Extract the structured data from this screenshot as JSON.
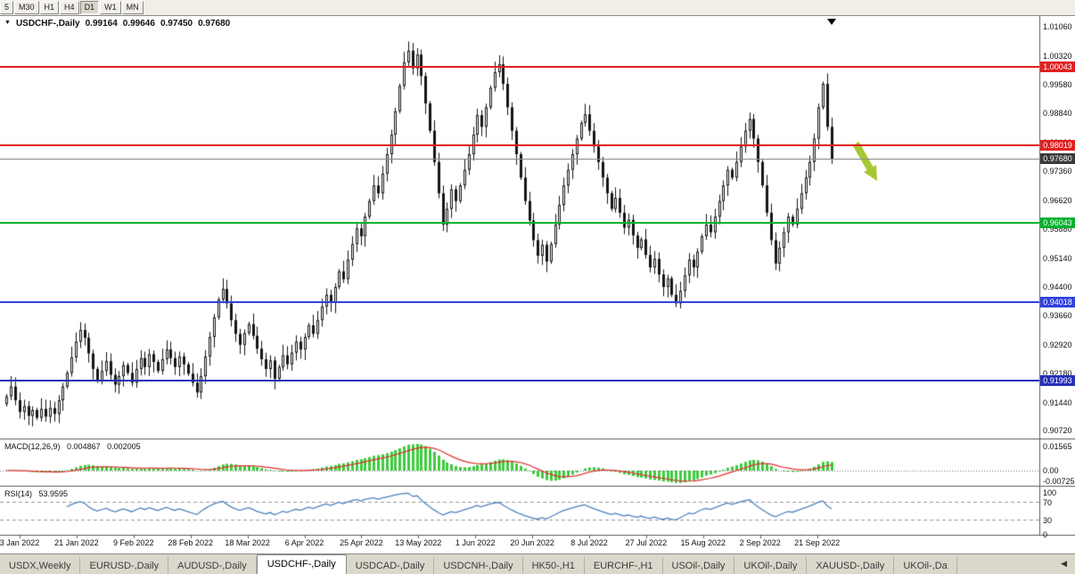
{
  "toolbar": {
    "timeframes": [
      {
        "label": "5",
        "active": false
      },
      {
        "label": "M30",
        "active": false
      },
      {
        "label": "H1",
        "active": false
      },
      {
        "label": "H4",
        "active": false
      },
      {
        "label": "D1",
        "active": true
      },
      {
        "label": "W1",
        "active": false
      },
      {
        "label": "MN",
        "active": false
      }
    ]
  },
  "chart": {
    "collapse_icon": "▼",
    "title": {
      "symbol": "USDCHF-,Daily",
      "open": "0.99164",
      "high": "0.99646",
      "low": "0.97450",
      "close": "0.97680"
    },
    "price_axis_labels": [
      "1.01060",
      "1.00320",
      "0.99580",
      "0.98840",
      "0.98100",
      "0.97360",
      "0.96620",
      "0.95880",
      "0.95140",
      "0.94400",
      "0.93660",
      "0.92920",
      "0.92180",
      "0.91440",
      "0.90720"
    ],
    "levels": [
      {
        "value": "1.00043",
        "color": "#e02020",
        "thickness": 2,
        "role": "resistance-line-upper"
      },
      {
        "value": "0.98019",
        "color": "#e02020",
        "thickness": 2,
        "role": "resistance-line-lower"
      },
      {
        "value": "0.97680",
        "color": "#8a8a8a",
        "box_color": "#3a3a3a",
        "thickness": 1,
        "role": "current-price-line"
      },
      {
        "value": "0.96043",
        "color": "#00b22d",
        "thickness": 2,
        "role": "support-line-green"
      },
      {
        "value": "0.94018",
        "color": "#3142dd",
        "thickness": 2,
        "role": "support-line-blue-upper"
      },
      {
        "value": "0.91993",
        "color": "#2330b8",
        "thickness": 2,
        "role": "support-line-blue-lower"
      }
    ],
    "date_axis_labels": [
      "3 Jan 2022",
      "21 Jan 2022",
      "9 Feb 2022",
      "28 Feb 2022",
      "18 Mar 2022",
      "6 Apr 2022",
      "25 Apr 2022",
      "13 May 2022",
      "1 Jun 2022",
      "20 Jun 2022",
      "8 Jul 2022",
      "27 Jul 2022",
      "15 Aug 2022",
      "2 Sep 2022",
      "21 Sep 2022"
    ]
  },
  "macd_panel": {
    "label": "MACD(12,26,9)",
    "main_value": "0.004867",
    "signal_value": "0.002005",
    "axis_labels": [
      "0.01565",
      "0.00",
      "-0.00725"
    ],
    "histogram_color": "#3ecb3e",
    "signal_color": "#e03030"
  },
  "rsi_panel": {
    "label": "RSI(14)",
    "value": "53.9595",
    "axis_labels": [
      "100",
      "70",
      "30",
      "0"
    ],
    "level_lines": [
      70,
      30
    ],
    "line_color": "#4f81bd"
  },
  "tabs": {
    "items": [
      {
        "label": "USDX,Weekly",
        "active": false
      },
      {
        "label": "EURUSD-,Daily",
        "active": false
      },
      {
        "label": "AUDUSD-,Daily",
        "active": false
      },
      {
        "label": "USDCHF-,Daily",
        "active": true
      },
      {
        "label": "USDCAD-,Daily",
        "active": false
      },
      {
        "label": "USDCNH-,Daily",
        "active": false
      },
      {
        "label": "HK50-,H1",
        "active": false
      },
      {
        "label": "EURCHF-,H1",
        "active": false
      },
      {
        "label": "USOil-,Daily",
        "active": false
      },
      {
        "label": "UKOil-,Daily",
        "active": false
      },
      {
        "label": "XAUUSD-,Daily",
        "active": false
      },
      {
        "label": "UKOil-,Da",
        "active": false
      }
    ],
    "scroll_left_icon": "◀"
  },
  "annotations": {
    "sell_arrow": {
      "direction": "down-right",
      "color": "#a6c832"
    }
  },
  "chart_data": {
    "type": "candlestick",
    "title": "USDCHF-,Daily",
    "symbol": "USDCHF",
    "timeframe": "D1",
    "ohlc_display": {
      "open": 0.99164,
      "high": 0.99646,
      "low": 0.9745,
      "close": 0.9768
    },
    "y_range": [
      0.9052,
      1.0136
    ],
    "x_labels": [
      "3 Jan 2022",
      "21 Jan 2022",
      "9 Feb 2022",
      "28 Feb 2022",
      "18 Mar 2022",
      "6 Apr 2022",
      "25 Apr 2022",
      "13 May 2022",
      "1 Jun 2022",
      "20 Jun 2022",
      "8 Jul 2022",
      "27 Jul 2022",
      "15 Aug 2022",
      "2 Sep 2022",
      "21 Sep 2022"
    ],
    "horizontal_lines": [
      1.00043,
      0.98019,
      0.9768,
      0.96043,
      0.94018,
      0.91993
    ],
    "first_open": 0.914,
    "closes": [
      0.916,
      0.9185,
      0.915,
      0.912,
      0.9135,
      0.911,
      0.9125,
      0.9105,
      0.9128,
      0.9108,
      0.913,
      0.9115,
      0.915,
      0.9185,
      0.922,
      0.926,
      0.93,
      0.933,
      0.931,
      0.927,
      0.923,
      0.92,
      0.9225,
      0.925,
      0.9215,
      0.919,
      0.9212,
      0.924,
      0.922,
      0.9195,
      0.923,
      0.9258,
      0.9235,
      0.9268,
      0.9248,
      0.9225,
      0.9255,
      0.928,
      0.9258,
      0.9235,
      0.9262,
      0.9242,
      0.9218,
      0.9195,
      0.917,
      0.9212,
      0.9262,
      0.9312,
      0.9362,
      0.9408,
      0.9435,
      0.9398,
      0.9355,
      0.932,
      0.9292,
      0.9322,
      0.9345,
      0.9315,
      0.9282,
      0.9255,
      0.923,
      0.9252,
      0.9205,
      0.9235,
      0.9265,
      0.9242,
      0.9272,
      0.93,
      0.928,
      0.9312,
      0.9342,
      0.932,
      0.9355,
      0.939,
      0.942,
      0.94,
      0.944,
      0.948,
      0.946,
      0.951,
      0.955,
      0.959,
      0.957,
      0.962,
      0.966,
      0.97,
      0.968,
      0.973,
      0.978,
      0.983,
      0.989,
      0.9955,
      1.0015,
      1.0045,
      1.0,
      1.0035,
      0.998,
      0.991,
      0.984,
      0.976,
      0.968,
      0.96,
      0.964,
      0.969,
      0.966,
      0.97,
      0.974,
      0.978,
      0.983,
      0.988,
      0.985,
      0.99,
      0.995,
      0.999,
      1.001,
      0.996,
      0.99,
      0.984,
      0.978,
      0.972,
      0.966,
      0.961,
      0.956,
      0.952,
      0.9548,
      0.9505,
      0.955,
      0.96,
      0.965,
      0.97,
      0.974,
      0.978,
      0.982,
      0.986,
      0.9882,
      0.984,
      0.98,
      0.976,
      0.972,
      0.968,
      0.964,
      0.9668,
      0.963,
      0.9592,
      0.9612,
      0.9572,
      0.954,
      0.9562,
      0.9522,
      0.949,
      0.9512,
      0.9472,
      0.944,
      0.9462,
      0.942,
      0.9398,
      0.943,
      0.947,
      0.951,
      0.949,
      0.953,
      0.957,
      0.96,
      0.958,
      0.962,
      0.966,
      0.97,
      0.974,
      0.972,
      0.976,
      0.98,
      0.984,
      0.987,
      0.982,
      0.976,
      0.97,
      0.963,
      0.956,
      0.95,
      0.954,
      0.958,
      0.962,
      0.96,
      0.964,
      0.968,
      0.972,
      0.976,
      0.982,
      0.99,
      0.996,
      0.985,
      0.9768
    ],
    "indicators": [
      {
        "name": "MACD",
        "params": [
          12,
          26,
          9
        ],
        "current": [
          0.004867,
          0.002005
        ],
        "range": [
          -0.00725,
          0.01565
        ]
      },
      {
        "name": "RSI",
        "params": [
          14
        ],
        "current": 53.9595,
        "levels": [
          70,
          30
        ],
        "range": [
          0,
          100
        ]
      }
    ]
  }
}
